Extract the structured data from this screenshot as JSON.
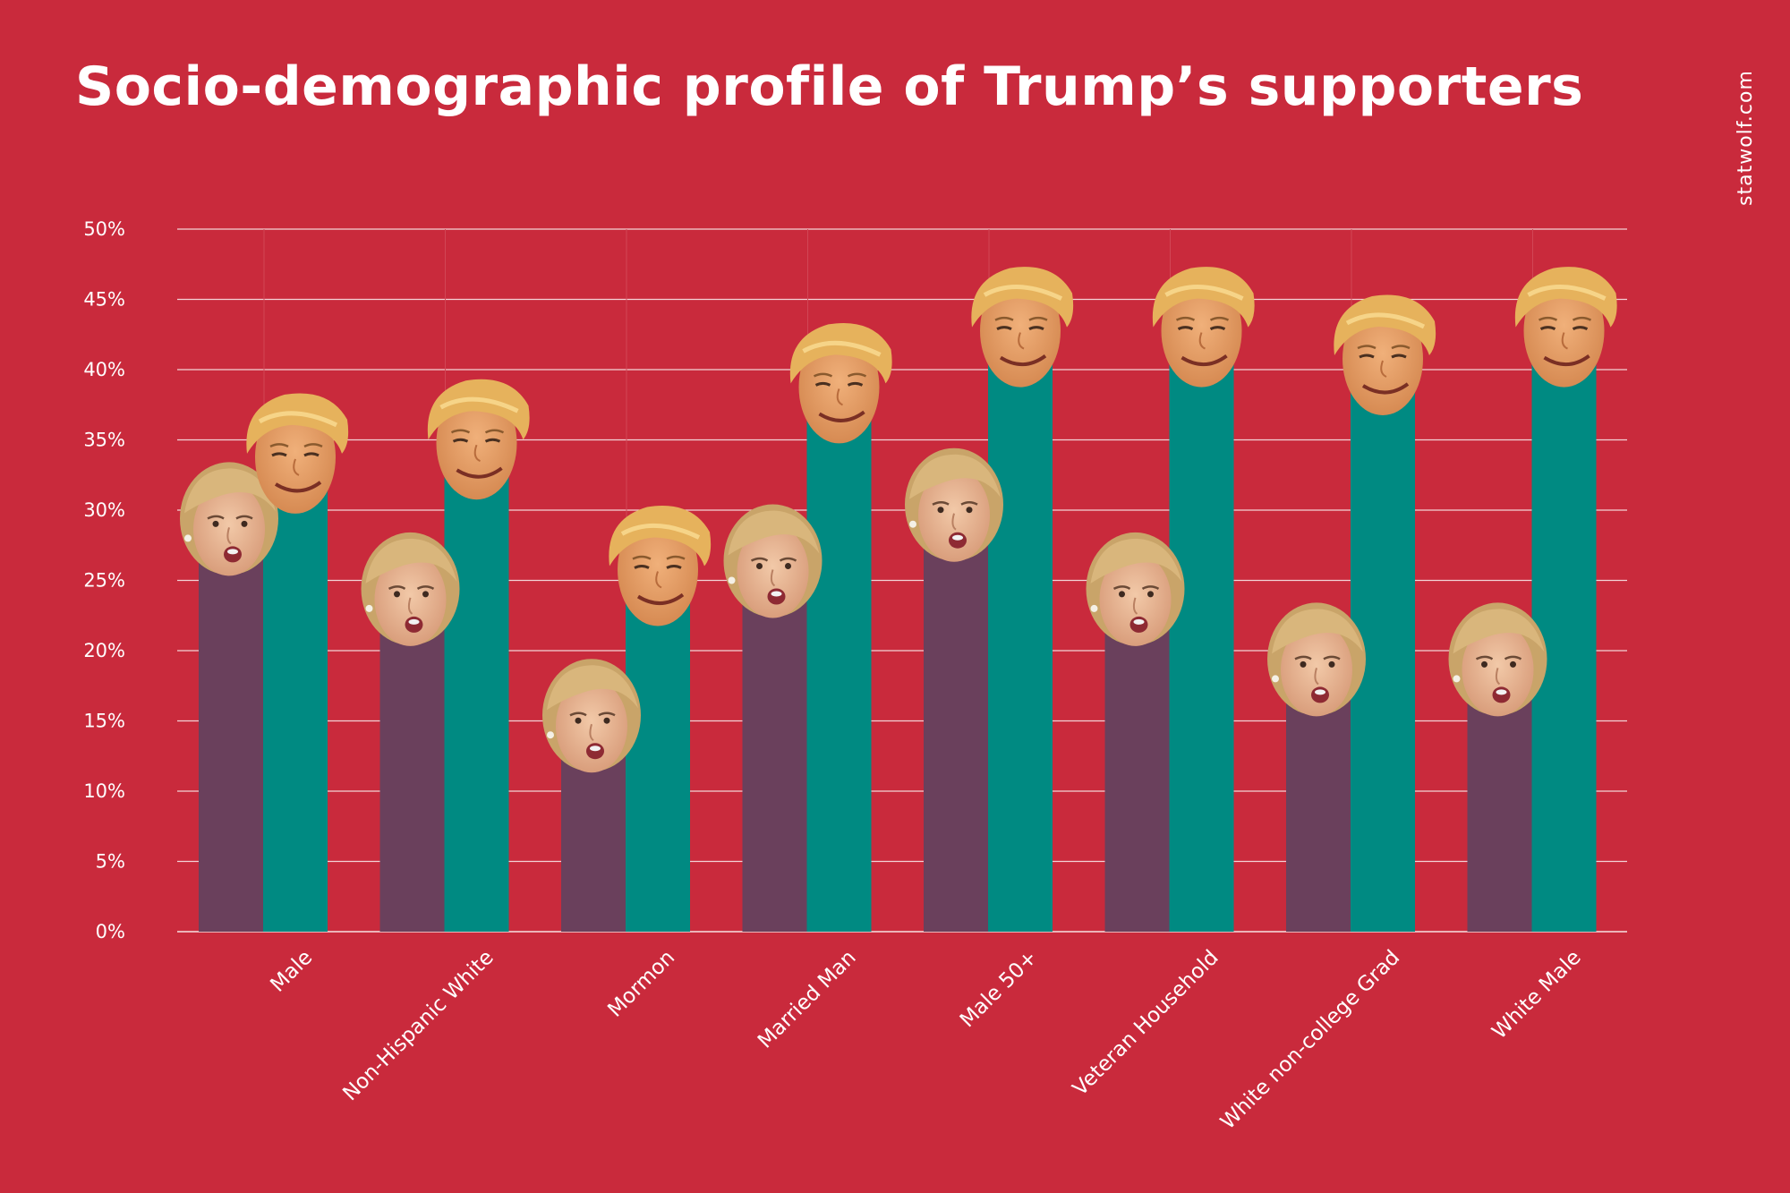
{
  "watermark": "statwolf.com",
  "chart_data": {
    "type": "bar",
    "title": "Socio-demographic profile of Trump’s supporters",
    "xlabel": "",
    "ylabel": "",
    "ylim": [
      0,
      50
    ],
    "y_ticks": [
      "0%",
      "5%",
      "10%",
      "15%",
      "20%",
      "25%",
      "30%",
      "35%",
      "40%",
      "45%",
      "50%"
    ],
    "categories": [
      "Male",
      "Non-Hispanic White",
      "Mormon",
      "Married Man",
      "Male 50+",
      "Veteran Household",
      "White non-college Grad",
      "White Male"
    ],
    "series": [
      {
        "values": [
          28,
          23,
          14,
          25,
          29,
          23,
          18,
          18
        ],
        "color": "#6a405c",
        "marker": "clinton-face-icon"
      },
      {
        "values": [
          33,
          34,
          25,
          38,
          42,
          42,
          40,
          42
        ],
        "color": "#008a82",
        "marker": "trump-face-icon"
      }
    ],
    "grid": true,
    "legend": "none"
  }
}
